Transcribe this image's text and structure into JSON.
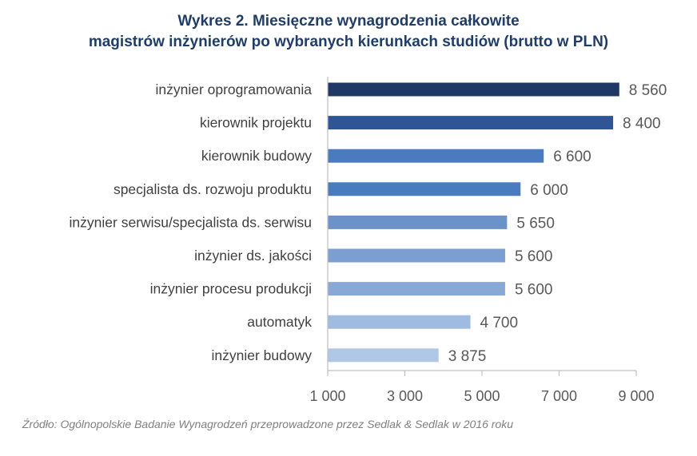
{
  "chart_data": {
    "type": "bar",
    "orientation": "horizontal",
    "title_lines": [
      "Wykres 2. Miesięczne wynagrodzenia całkowite",
      "magistrów inżynierów po wybranych kierunkach studiów (brutto w PLN)"
    ],
    "categories": [
      "inżynier oprogramowania",
      "kierownik projektu",
      "kierownik budowy",
      "specjalista ds. rozwoju produktu",
      "inżynier serwisu/specjalista ds. serwisu",
      "inżynier ds. jakości",
      "inżynier procesu produkcji",
      "automatyk",
      "inżynier budowy"
    ],
    "values": [
      8560,
      8400,
      6600,
      6000,
      5650,
      5600,
      5600,
      4700,
      3875
    ],
    "value_labels": [
      "8 560",
      "8 400",
      "6 600",
      "6 000",
      "5 650",
      "5 600",
      "5 600",
      "4 700",
      "3 875"
    ],
    "bar_colors": [
      "#203864",
      "#2f5597",
      "#4a7bbf",
      "#4a7bbf",
      "#6b93c9",
      "#7a9fd0",
      "#88a9d6",
      "#9fbbe0",
      "#b0c7e6"
    ],
    "xlim": [
      1000,
      9000
    ],
    "x_ticks": [
      1000,
      3000,
      5000,
      7000,
      9000
    ],
    "x_tick_labels": [
      "1 000",
      "3 000",
      "5 000",
      "7 000",
      "9 000"
    ],
    "grid": false,
    "legend": "none"
  },
  "source": "Źródło: Ogólnopolskie Badanie Wynagrodzeń przeprowadzone przez Sedlak & Sedlak w 2016 roku",
  "colors": {
    "title": "#1f3d6b",
    "category_text": "#404040",
    "value_text": "#595959",
    "axis": "#bfbfbf",
    "source_text": "#7f7f7f"
  }
}
